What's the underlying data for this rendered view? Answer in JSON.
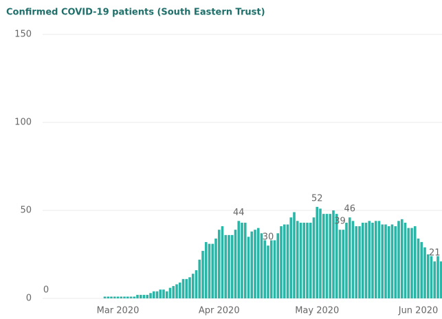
{
  "chart_data": {
    "type": "bar",
    "title": "Confirmed COVID-19 patients (South Eastern Trust)",
    "categories": [
      null,
      null,
      null,
      null,
      null,
      null,
      null,
      null,
      null,
      null,
      null,
      null,
      null,
      null,
      null,
      null,
      null,
      null,
      null,
      null,
      null,
      null,
      "Mar 2020",
      null,
      null,
      null,
      null,
      null,
      null,
      null,
      null,
      null,
      null,
      null,
      null,
      null,
      null,
      null,
      null,
      null,
      null,
      null,
      null,
      null,
      null,
      null,
      null,
      null,
      null,
      null,
      null,
      null,
      null,
      "Apr 2020",
      null,
      null,
      null,
      null,
      null,
      null,
      null,
      null,
      null,
      null,
      null,
      null,
      null,
      null,
      null,
      null,
      null,
      null,
      null,
      null,
      null,
      null,
      null,
      null,
      null,
      null,
      null,
      null,
      null,
      "May 2020",
      null,
      null,
      null,
      null,
      null,
      null,
      null,
      null,
      null,
      null,
      null,
      null,
      null,
      null,
      null,
      null,
      null,
      null,
      null,
      null,
      null,
      null,
      null,
      null,
      null,
      null,
      null,
      null,
      null,
      null,
      "Jun 2020",
      null,
      null,
      null,
      null,
      null,
      null,
      null
    ],
    "values": [
      0,
      0,
      0,
      0,
      0,
      0,
      0,
      0,
      0,
      0,
      0,
      0,
      0,
      0,
      0,
      0,
      0,
      0,
      1,
      1,
      1,
      1,
      1,
      1,
      1,
      1,
      1,
      1,
      2,
      2,
      2,
      2,
      3,
      4,
      4,
      5,
      5,
      4,
      6,
      7,
      8,
      9,
      11,
      11,
      12,
      14,
      16,
      22,
      27,
      32,
      31,
      31,
      34,
      39,
      41,
      36,
      36,
      36,
      39,
      44,
      43,
      43,
      35,
      38,
      39,
      40,
      37,
      33,
      30,
      33,
      33,
      37,
      41,
      42,
      42,
      46,
      49,
      44,
      43,
      43,
      43,
      43,
      46,
      52,
      51,
      48,
      48,
      48,
      50,
      48,
      39,
      39,
      43,
      46,
      44,
      41,
      41,
      43,
      43,
      44,
      43,
      44,
      44,
      42,
      42,
      41,
      42,
      41,
      44,
      45,
      43,
      40,
      40,
      41,
      34,
      32,
      29,
      25,
      24,
      21,
      24,
      21
    ],
    "value_labels": [
      "0",
      null,
      null,
      null,
      null,
      null,
      null,
      null,
      null,
      null,
      null,
      null,
      null,
      null,
      null,
      null,
      null,
      null,
      null,
      null,
      null,
      null,
      null,
      null,
      null,
      null,
      null,
      null,
      null,
      null,
      null,
      null,
      null,
      null,
      null,
      null,
      null,
      null,
      null,
      null,
      null,
      null,
      null,
      null,
      null,
      null,
      null,
      null,
      null,
      null,
      null,
      null,
      null,
      null,
      null,
      null,
      null,
      null,
      null,
      "44",
      null,
      null,
      null,
      null,
      null,
      null,
      null,
      null,
      "30",
      null,
      null,
      null,
      null,
      null,
      null,
      null,
      null,
      null,
      null,
      null,
      null,
      null,
      null,
      "52",
      null,
      null,
      null,
      null,
      null,
      null,
      "39",
      null,
      null,
      "46",
      null,
      null,
      null,
      null,
      null,
      null,
      null,
      null,
      null,
      null,
      null,
      null,
      null,
      null,
      null,
      null,
      null,
      null,
      null,
      null,
      null,
      null,
      null,
      null,
      null,
      "21",
      null,
      null
    ],
    "color": "#2bb5a6",
    "ylim": [
      0,
      150
    ],
    "yticks": [
      0,
      50,
      100,
      150
    ],
    "grid": true
  }
}
